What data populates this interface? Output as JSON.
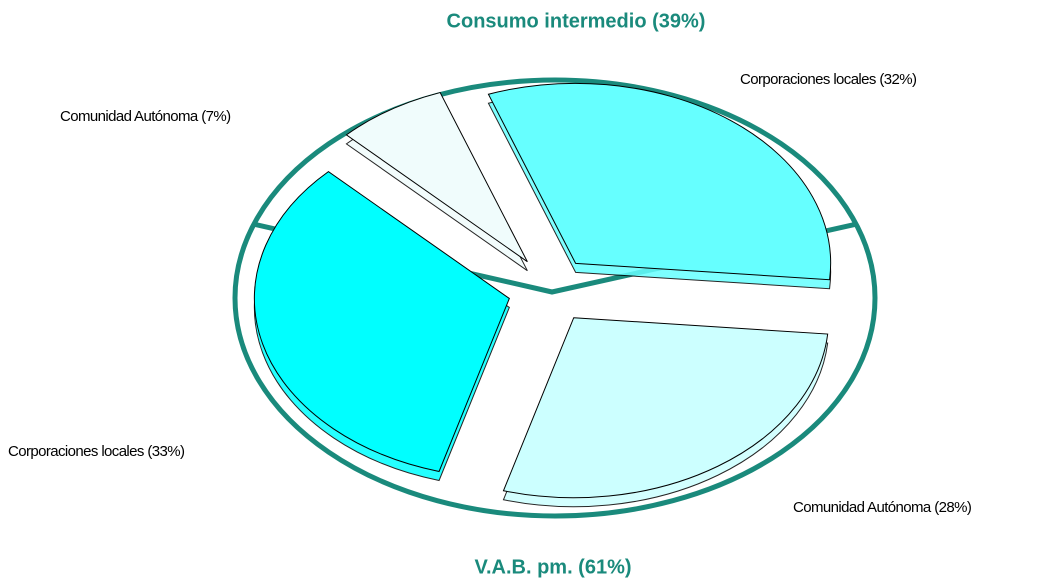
{
  "chart_data": {
    "type": "pie",
    "categories": [
      "Corporaciones locales (32%)",
      "Comunidad Autónoma (28%)",
      "Corporaciones locales (33%)",
      "Comunidad Autónoma (7%)"
    ],
    "values": [
      32,
      28,
      33,
      7
    ],
    "colors": [
      "#66ffff",
      "#ccffff",
      "#00ffff",
      "#f0fcfc"
    ],
    "groups": [
      {
        "label": "Consumo intermedio (39%)",
        "value": 39
      },
      {
        "label": "V.A.B. pm. (61%)",
        "value": 61
      }
    ],
    "group_color": "#1a8a7c"
  }
}
